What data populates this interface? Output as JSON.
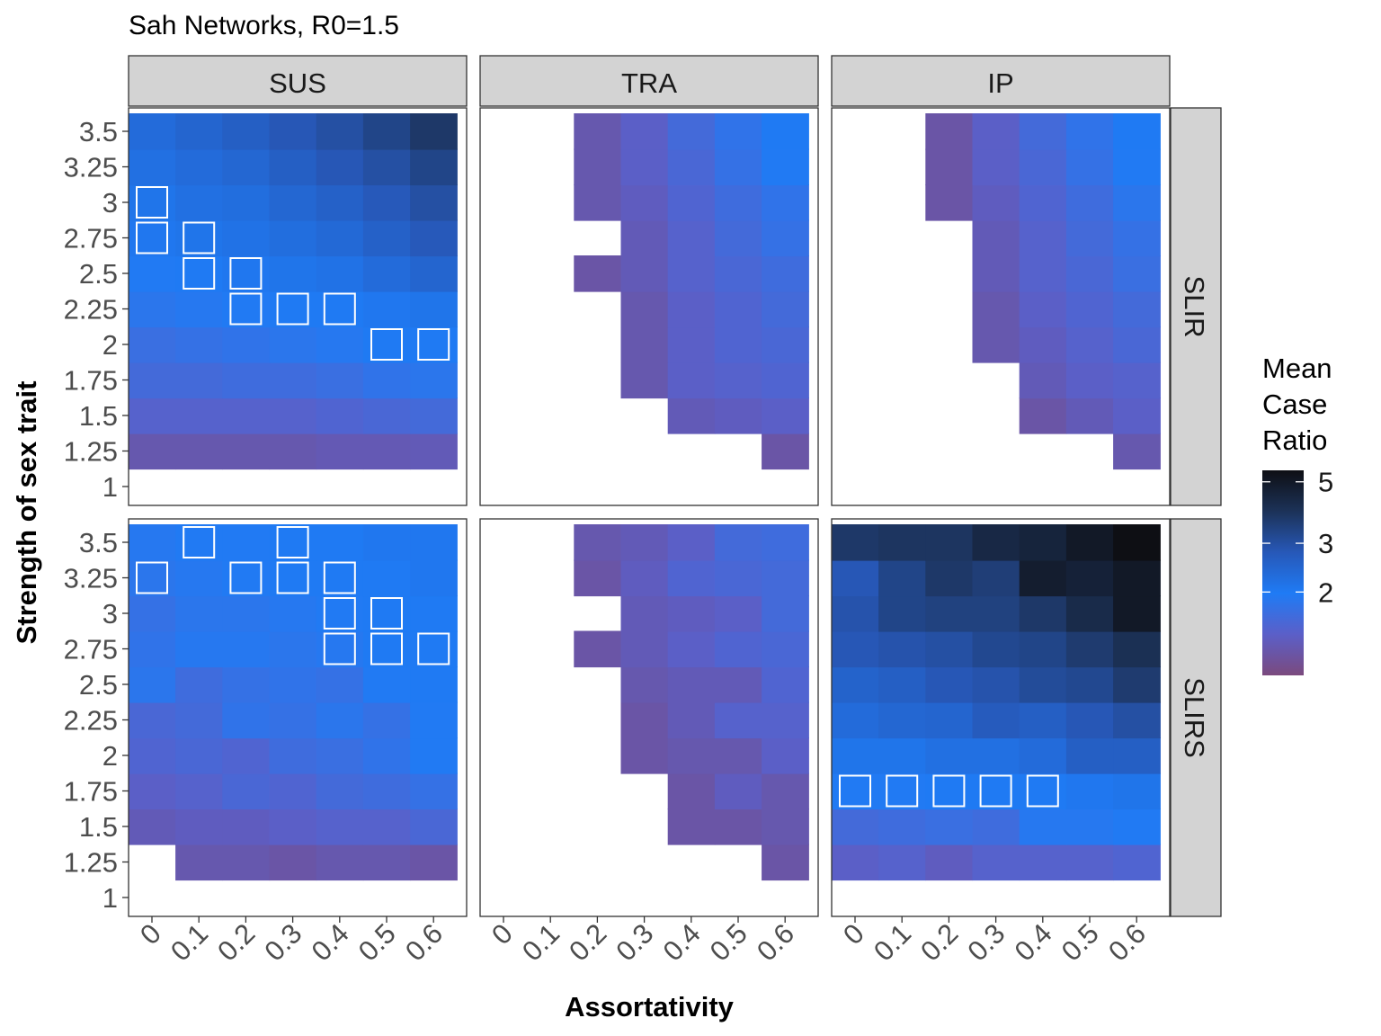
{
  "chart_data": {
    "type": "heatmap",
    "title": "Sah Networks, R0=1.5",
    "xlabel": "Assortativity",
    "ylabel": "Strength of sex trait",
    "x": [
      "0",
      "0.1",
      "0.2",
      "0.3",
      "0.4",
      "0.5",
      "0.6"
    ],
    "y": [
      "1",
      "1.25",
      "1.5",
      "1.75",
      "2",
      "2.25",
      "2.5",
      "2.75",
      "3",
      "3.25",
      "3.5"
    ],
    "columns": [
      "SUS",
      "TRA",
      "IP"
    ],
    "rows": [
      "SLIR",
      "SLIRS"
    ],
    "legend": {
      "title": [
        "Mean",
        "Case",
        "Ratio"
      ],
      "ticks": [
        "2",
        "3",
        "5"
      ],
      "tick_values": [
        2,
        3,
        5
      ],
      "range": [
        1.0,
        5.5
      ],
      "position": "right",
      "colors": [
        "#7b4a7e",
        "#5b5fc8",
        "#1f7bf5",
        "#2758b8",
        "#1c3258",
        "#0e0f14"
      ]
    },
    "grid": true,
    "note_cells": "Each cell value is listed by y level from 1 to 3.5 (index 0..10) for assortativity 0..0.6; null = no data; highlighted cells are outlined in white.",
    "panels": [
      {
        "column": "SUS",
        "row": "SLIR",
        "values": [
          [
            null,
            null,
            null,
            null,
            null,
            null,
            null
          ],
          [
            1.25,
            1.25,
            1.25,
            1.25,
            1.28,
            1.28,
            1.3
          ],
          [
            1.45,
            1.45,
            1.45,
            1.45,
            1.5,
            1.55,
            1.6
          ],
          [
            1.6,
            1.6,
            1.65,
            1.65,
            1.7,
            1.8,
            1.85
          ],
          [
            1.7,
            1.75,
            1.8,
            1.85,
            1.9,
            2.0,
            2.0
          ],
          [
            1.85,
            1.9,
            1.95,
            2.0,
            2.0,
            2.05,
            2.1
          ],
          [
            1.95,
            2.0,
            2.05,
            2.1,
            2.15,
            2.3,
            2.45
          ],
          [
            2.05,
            2.1,
            2.15,
            2.25,
            2.35,
            2.55,
            2.75
          ],
          [
            2.1,
            2.2,
            2.25,
            2.4,
            2.55,
            2.75,
            3.0
          ],
          [
            2.2,
            2.3,
            2.4,
            2.6,
            2.8,
            3.0,
            3.3
          ],
          [
            2.3,
            2.45,
            2.6,
            2.8,
            3.0,
            3.3,
            3.7
          ]
        ],
        "highlighted": [
          [
            0,
            8
          ],
          [
            0,
            7
          ],
          [
            1,
            7
          ],
          [
            1,
            6
          ],
          [
            2,
            6
          ],
          [
            2,
            5
          ],
          [
            3,
            5
          ],
          [
            4,
            5
          ],
          [
            5,
            4
          ],
          [
            6,
            4
          ]
        ]
      },
      {
        "column": "TRA",
        "row": "SLIR",
        "values": [
          [
            null,
            null,
            null,
            null,
            null,
            null,
            null
          ],
          [
            null,
            null,
            null,
            null,
            null,
            null,
            1.2
          ],
          [
            null,
            null,
            null,
            null,
            1.3,
            1.35,
            1.4
          ],
          [
            null,
            null,
            null,
            1.25,
            1.4,
            1.45,
            1.5
          ],
          [
            null,
            null,
            null,
            1.25,
            1.4,
            1.5,
            1.55
          ],
          [
            null,
            null,
            null,
            1.25,
            1.4,
            1.5,
            1.6
          ],
          [
            null,
            null,
            1.2,
            1.3,
            1.45,
            1.55,
            1.65
          ],
          [
            null,
            null,
            null,
            1.3,
            1.45,
            1.6,
            1.75
          ],
          [
            null,
            null,
            1.25,
            1.35,
            1.5,
            1.65,
            1.8
          ],
          [
            null,
            null,
            1.25,
            1.4,
            1.55,
            1.75,
            1.95
          ],
          [
            null,
            null,
            1.25,
            1.4,
            1.6,
            1.8,
            2.0
          ]
        ],
        "highlighted": []
      },
      {
        "column": "IP",
        "row": "SLIR",
        "values": [
          [
            null,
            null,
            null,
            null,
            null,
            null,
            null
          ],
          [
            null,
            null,
            null,
            null,
            null,
            null,
            1.25
          ],
          [
            null,
            null,
            null,
            null,
            1.2,
            1.3,
            1.4
          ],
          [
            null,
            null,
            null,
            null,
            1.3,
            1.4,
            1.45
          ],
          [
            null,
            null,
            null,
            1.25,
            1.35,
            1.45,
            1.55
          ],
          [
            null,
            null,
            null,
            1.25,
            1.4,
            1.5,
            1.6
          ],
          [
            null,
            null,
            null,
            1.3,
            1.45,
            1.55,
            1.7
          ],
          [
            null,
            null,
            null,
            1.3,
            1.45,
            1.6,
            1.75
          ],
          [
            null,
            null,
            1.2,
            1.35,
            1.5,
            1.65,
            1.85
          ],
          [
            null,
            null,
            1.2,
            1.4,
            1.55,
            1.75,
            1.95
          ],
          [
            null,
            null,
            1.2,
            1.4,
            1.6,
            1.8,
            2.0
          ]
        ],
        "highlighted": []
      },
      {
        "column": "SUS",
        "row": "SLIRS",
        "values": [
          [
            null,
            null,
            null,
            null,
            null,
            null,
            null
          ],
          [
            null,
            1.25,
            1.25,
            1.2,
            1.25,
            1.25,
            1.2
          ],
          [
            1.3,
            1.35,
            1.35,
            1.4,
            1.45,
            1.45,
            1.55
          ],
          [
            1.4,
            1.45,
            1.55,
            1.5,
            1.6,
            1.65,
            1.75
          ],
          [
            1.5,
            1.55,
            1.5,
            1.65,
            1.7,
            1.8,
            1.95
          ],
          [
            1.55,
            1.6,
            1.8,
            1.75,
            1.85,
            1.75,
            1.95
          ],
          [
            1.85,
            1.65,
            1.75,
            1.8,
            1.75,
            1.95,
            2.0
          ],
          [
            1.8,
            1.9,
            1.9,
            1.85,
            1.9,
            2.0,
            2.0
          ],
          [
            1.75,
            1.85,
            1.85,
            1.9,
            1.95,
            2.0,
            2.0
          ],
          [
            1.85,
            1.9,
            1.95,
            2.0,
            2.0,
            2.0,
            2.05
          ],
          [
            1.9,
            1.95,
            1.95,
            2.0,
            2.0,
            2.05,
            2.05
          ]
        ],
        "highlighted": [
          [
            0,
            9
          ],
          [
            1,
            10
          ],
          [
            2,
            9
          ],
          [
            3,
            10
          ],
          [
            3,
            9
          ],
          [
            4,
            9
          ],
          [
            4,
            8
          ],
          [
            4,
            7
          ],
          [
            5,
            8
          ],
          [
            5,
            7
          ],
          [
            6,
            7
          ]
        ]
      },
      {
        "column": "TRA",
        "row": "SLIRS",
        "values": [
          [
            null,
            null,
            null,
            null,
            null,
            null,
            null
          ],
          [
            null,
            null,
            null,
            null,
            null,
            null,
            1.2
          ],
          [
            null,
            null,
            null,
            null,
            1.2,
            1.2,
            1.25
          ],
          [
            null,
            null,
            null,
            null,
            1.2,
            1.35,
            1.25
          ],
          [
            null,
            null,
            null,
            1.2,
            1.25,
            1.25,
            1.4
          ],
          [
            null,
            null,
            null,
            1.2,
            1.3,
            1.45,
            1.45
          ],
          [
            null,
            null,
            null,
            1.25,
            1.3,
            1.3,
            1.5
          ],
          [
            null,
            null,
            1.2,
            1.3,
            1.4,
            1.5,
            1.55
          ],
          [
            null,
            null,
            null,
            1.3,
            1.35,
            1.4,
            1.6
          ],
          [
            null,
            null,
            1.2,
            1.35,
            1.5,
            1.55,
            1.6
          ],
          [
            null,
            null,
            1.25,
            1.3,
            1.4,
            1.6,
            1.65
          ]
        ],
        "highlighted": []
      },
      {
        "column": "IP",
        "row": "SLIRS",
        "values": [
          [
            null,
            null,
            null,
            null,
            null,
            null,
            null
          ],
          [
            1.4,
            1.45,
            1.35,
            1.45,
            1.45,
            1.45,
            1.5
          ],
          [
            1.6,
            1.65,
            1.7,
            1.65,
            1.9,
            1.9,
            1.95
          ],
          [
            1.95,
            1.95,
            2.0,
            2.0,
            2.0,
            2.05,
            2.1
          ],
          [
            2.1,
            2.1,
            2.2,
            2.2,
            2.3,
            2.6,
            2.6
          ],
          [
            2.3,
            2.4,
            2.45,
            2.7,
            2.6,
            2.8,
            3.0
          ],
          [
            2.5,
            2.6,
            2.8,
            2.9,
            3.1,
            3.2,
            3.6
          ],
          [
            2.8,
            2.9,
            3.0,
            3.2,
            3.3,
            3.6,
            4.0
          ],
          [
            2.9,
            3.3,
            3.4,
            3.4,
            3.7,
            4.2,
            5.0
          ],
          [
            2.8,
            3.3,
            3.7,
            3.5,
            4.8,
            4.6,
            5.0
          ],
          [
            3.7,
            3.8,
            3.8,
            4.3,
            4.5,
            5.0,
            5.5
          ]
        ],
        "highlighted": [
          [
            0,
            3
          ],
          [
            1,
            3
          ],
          [
            2,
            3
          ],
          [
            3,
            3
          ],
          [
            4,
            3
          ]
        ]
      }
    ]
  }
}
